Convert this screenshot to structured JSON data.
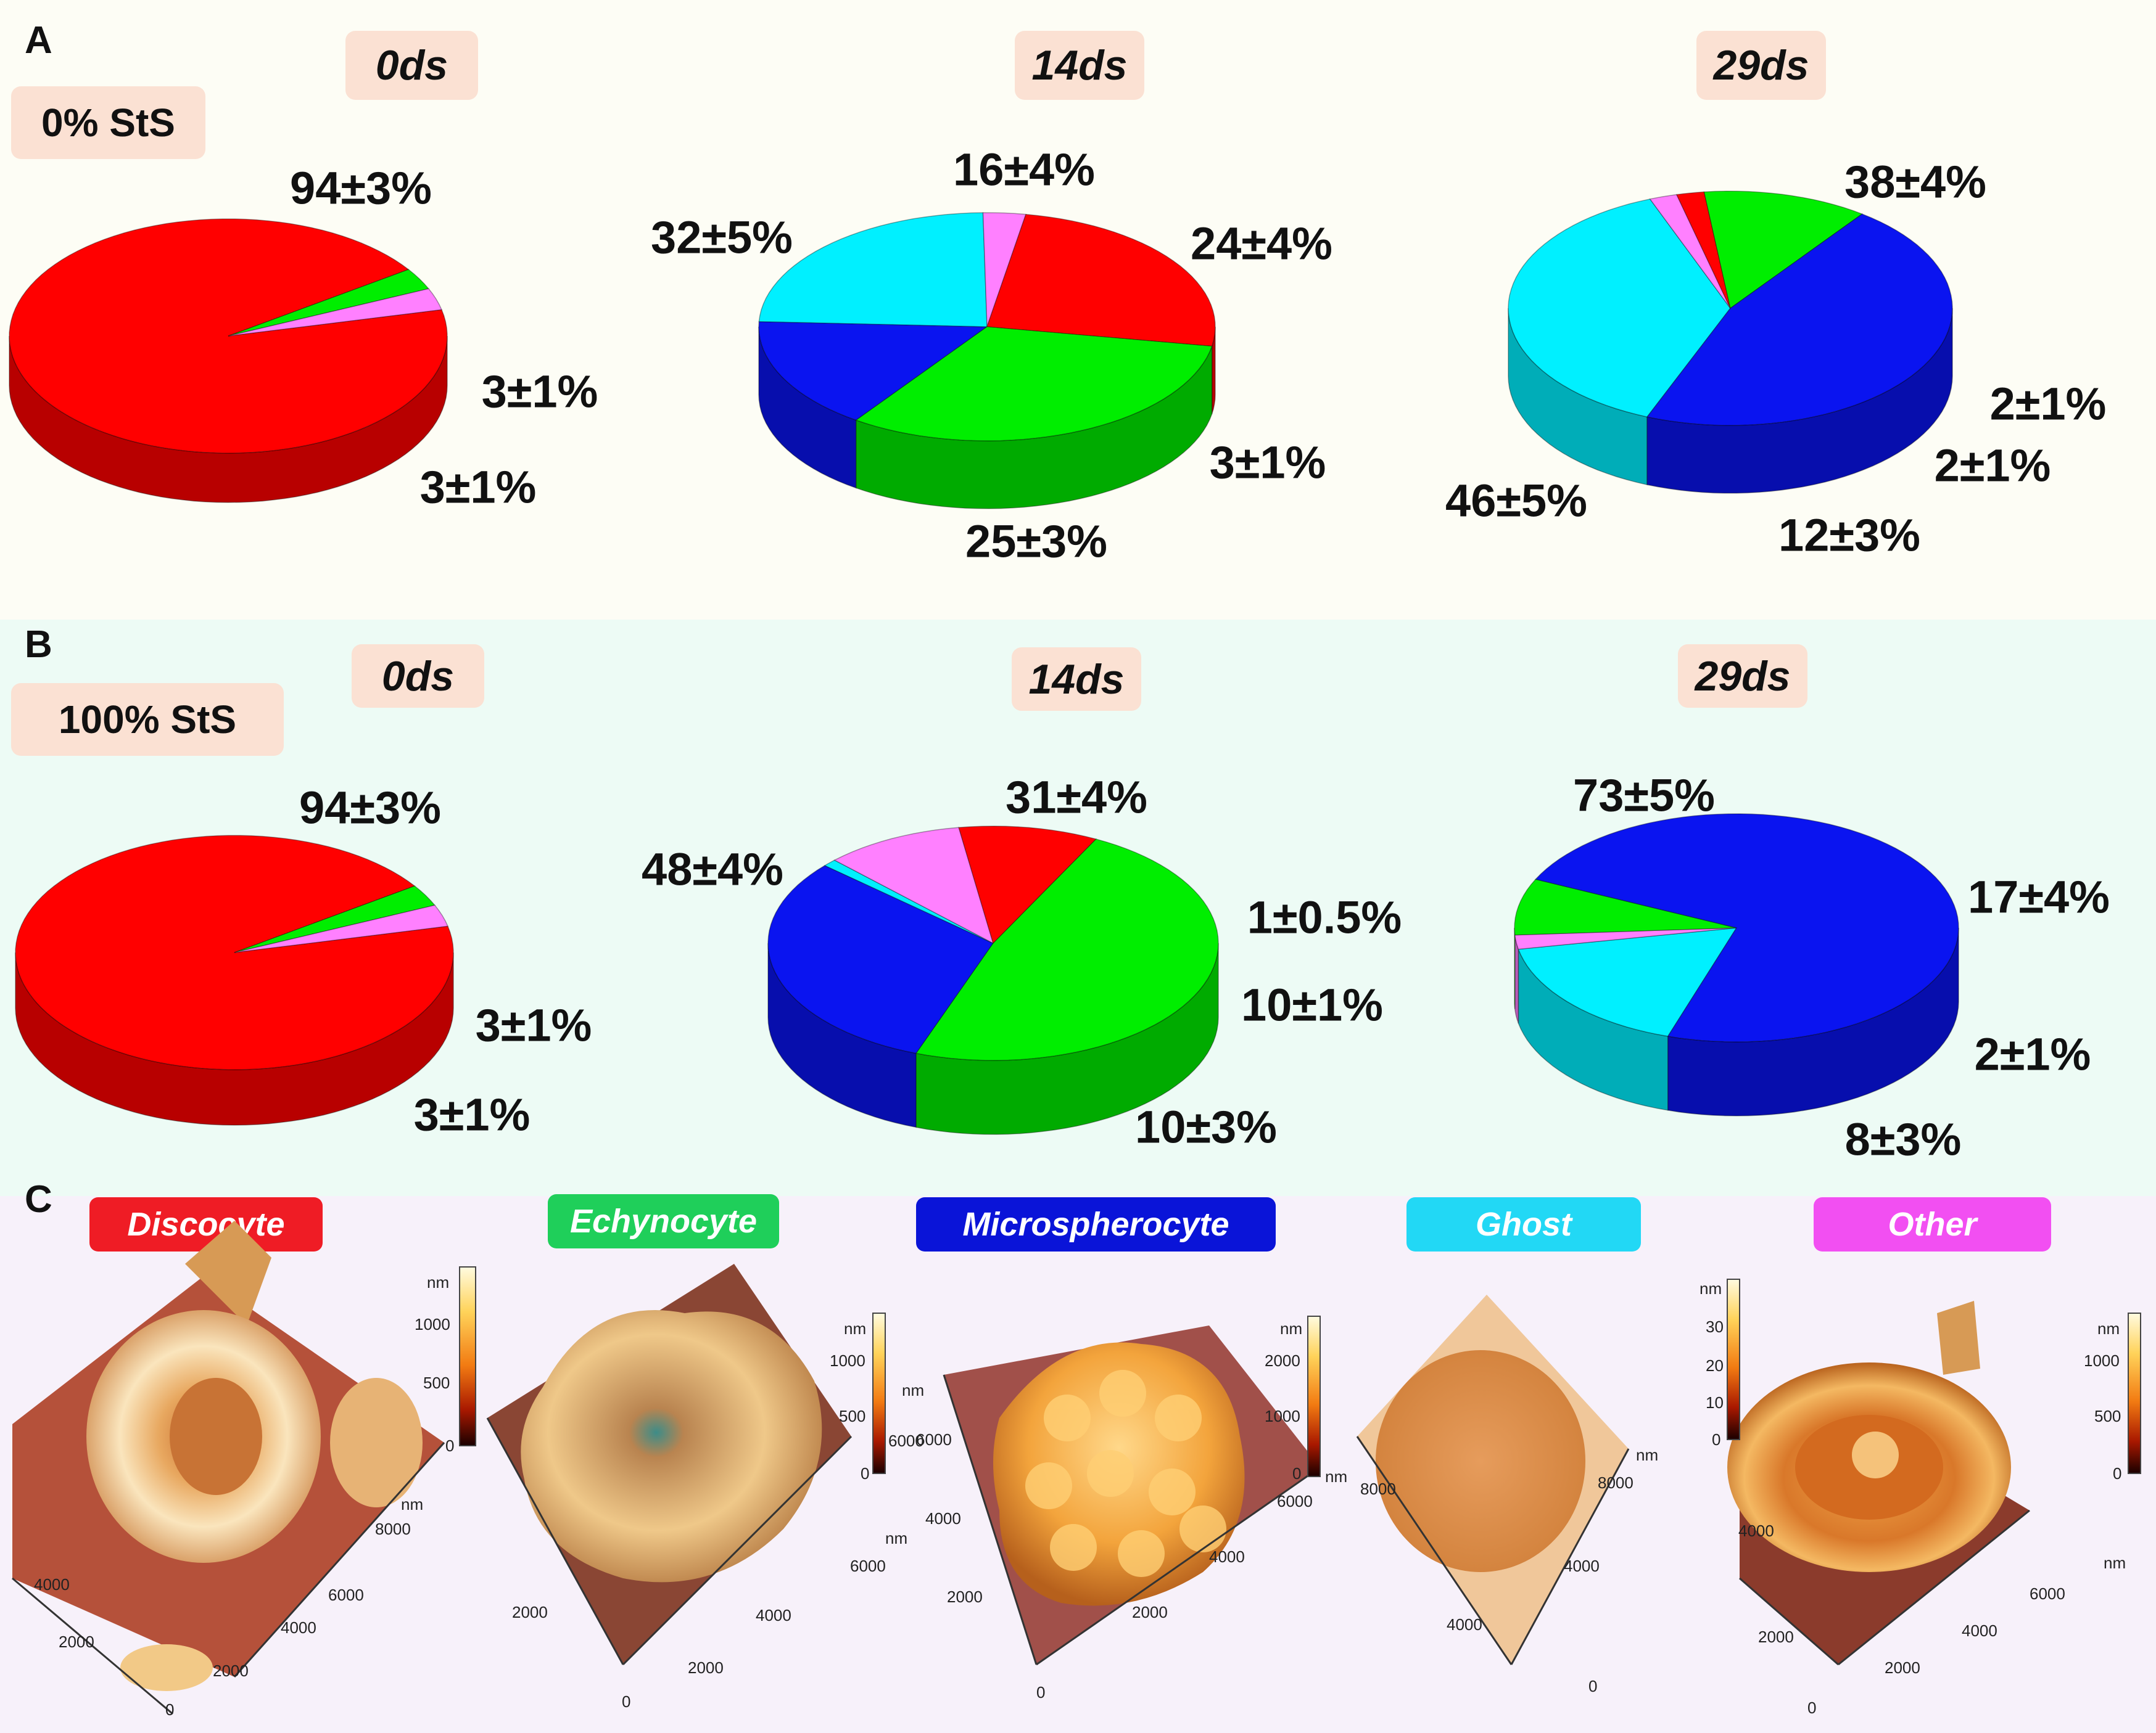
{
  "panels": [
    {
      "letter": "A",
      "condition": "0% StS",
      "background": "#fdfdf5"
    },
    {
      "letter": "B",
      "condition": "100% StS",
      "background": "#edfbf5"
    },
    {
      "letter": "C",
      "background": "#f7f1fa"
    }
  ],
  "timepoints": [
    "0ds",
    "14ds",
    "29ds"
  ],
  "colors": {
    "Discocyte": "#ff0000",
    "Echynocyte": "#00ee00",
    "Microspherocyte": "#0a14f0",
    "Ghost": "#00f0ff",
    "Other": "#ff80ff"
  },
  "chart_data": [
    {
      "type": "pie",
      "panel": "A",
      "condition": "0% StS",
      "title": "0ds",
      "slices": [
        {
          "category": "Discocyte",
          "value": 94,
          "label": "94±3%"
        },
        {
          "category": "Echynocyte",
          "value": 3,
          "label": "3±1%"
        },
        {
          "category": "Other",
          "value": 3,
          "label": "3±1%"
        }
      ]
    },
    {
      "type": "pie",
      "panel": "A",
      "condition": "0% StS",
      "title": "14ds",
      "slices": [
        {
          "category": "Microspherocyte",
          "value": 16,
          "label": "16±4%"
        },
        {
          "category": "Ghost",
          "value": 24,
          "label": "24±4%"
        },
        {
          "category": "Other",
          "value": 3,
          "label": "3±1%"
        },
        {
          "category": "Discocyte",
          "value": 25,
          "label": "25±3%"
        },
        {
          "category": "Echynocyte",
          "value": 32,
          "label": "32±5%"
        }
      ]
    },
    {
      "type": "pie",
      "panel": "A",
      "condition": "0% StS",
      "title": "29ds",
      "slices": [
        {
          "category": "Ghost",
          "value": 38,
          "label": "38±4%"
        },
        {
          "category": "Other",
          "value": 2,
          "label": "2±1%"
        },
        {
          "category": "Discocyte",
          "value": 2,
          "label": "2±1%"
        },
        {
          "category": "Echynocyte",
          "value": 12,
          "label": "12±3%"
        },
        {
          "category": "Microspherocyte",
          "value": 46,
          "label": "46±5%"
        }
      ]
    },
    {
      "type": "pie",
      "panel": "B",
      "condition": "100% StS",
      "title": "0ds",
      "slices": [
        {
          "category": "Discocyte",
          "value": 94,
          "label": "94±3%"
        },
        {
          "category": "Echynocyte",
          "value": 3,
          "label": "3±1%"
        },
        {
          "category": "Other",
          "value": 3,
          "label": "3±1%"
        }
      ]
    },
    {
      "type": "pie",
      "panel": "B",
      "condition": "100% StS",
      "title": "14ds",
      "slices": [
        {
          "category": "Microspherocyte",
          "value": 31,
          "label": "31±4%"
        },
        {
          "category": "Ghost",
          "value": 1,
          "label": "1±0.5%"
        },
        {
          "category": "Other",
          "value": 10,
          "label": "10±1%"
        },
        {
          "category": "Discocyte",
          "value": 10,
          "label": "10±3%"
        },
        {
          "category": "Echynocyte",
          "value": 48,
          "label": "48±4%"
        }
      ]
    },
    {
      "type": "pie",
      "panel": "B",
      "condition": "100% StS",
      "title": "29ds",
      "slices": [
        {
          "category": "Ghost",
          "value": 17,
          "label": "17±4%"
        },
        {
          "category": "Other",
          "value": 2,
          "label": "2±1%"
        },
        {
          "category": "Echynocyte",
          "value": 8,
          "label": "8±3%"
        },
        {
          "category": "Microspherocyte",
          "value": 73,
          "label": "73±5%"
        }
      ]
    }
  ],
  "cell_types": [
    {
      "name": "Discocyte",
      "color": "#ef1c25",
      "scale_unit": "nm",
      "scale_ticks": [
        "1000",
        "500",
        "0"
      ],
      "x_ticks": [
        "2000",
        "4000",
        "6000",
        "8000"
      ],
      "x_unit": "nm",
      "y_ticks": [
        "0",
        "2000",
        "4000"
      ]
    },
    {
      "name": "Echynocyte",
      "color": "#1fcf5a",
      "scale_unit": "nm",
      "scale_ticks": [
        "1000",
        "500",
        "0"
      ],
      "x_ticks": [
        "2000",
        "4000",
        "6000"
      ],
      "x_unit": "nm",
      "y_ticks": [
        "0",
        "2000",
        "6000"
      ],
      "y_unit": "nm"
    },
    {
      "name": "Microspherocyte",
      "color": "#0a14d8",
      "scale_unit": "nm",
      "scale_ticks": [
        "2000",
        "1000",
        "0"
      ],
      "x_ticks": [
        "0",
        "2000",
        "4000",
        "6000"
      ],
      "x_unit": "nm",
      "y_ticks": [
        "2000",
        "4000",
        "6000"
      ]
    },
    {
      "name": "Ghost",
      "color": "#22d8f5",
      "scale_unit": "nm",
      "scale_ticks": [
        "30",
        "20",
        "10",
        "0"
      ],
      "x_ticks": [
        "0",
        "4000",
        "8000"
      ],
      "x_unit": "nm",
      "y_ticks": [
        "4000",
        "8000"
      ]
    },
    {
      "name": "Other",
      "color": "#f24ff2",
      "scale_unit": "nm",
      "scale_ticks": [
        "1000",
        "500",
        "0"
      ],
      "x_ticks": [
        "0",
        "2000",
        "4000",
        "6000"
      ],
      "x_unit": "nm",
      "y_ticks": [
        "2000",
        "4000"
      ]
    }
  ]
}
